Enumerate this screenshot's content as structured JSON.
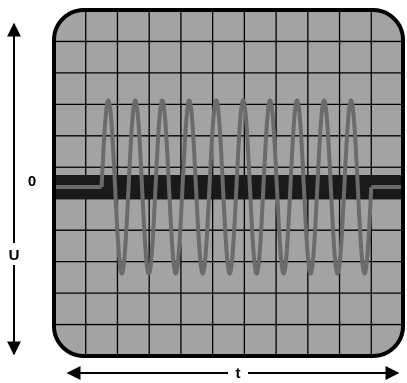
{
  "labels": {
    "zero": "0",
    "y_axis": "U",
    "x_axis": "t"
  },
  "signal": {
    "cycles": 10,
    "amplitude_divisions": 2.75,
    "baseline_level_divisions": 0,
    "burst_start_division": 1.5,
    "burst_end_division": 10,
    "grid_columns": 11,
    "grid_rows": 11
  },
  "colors": {
    "screen": "#a3a3a3",
    "grid": "#000000",
    "frame": "#000000",
    "trace": "#6b6b6b",
    "baseline": "#1a1a1a"
  }
}
